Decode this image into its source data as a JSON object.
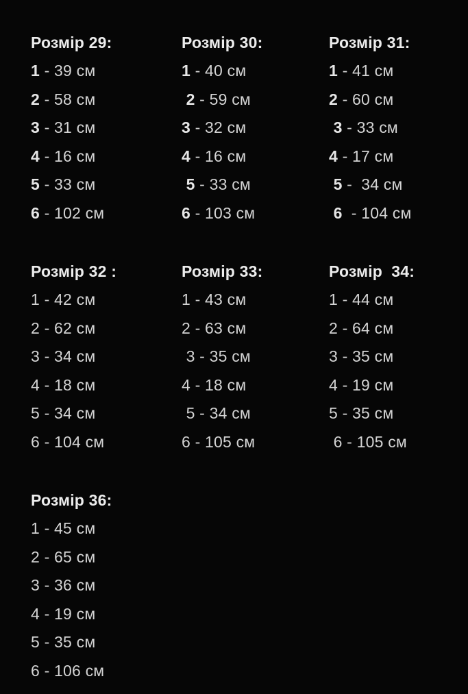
{
  "page": {
    "background": "#060606",
    "title_color": "#ececec",
    "text_color": "#d3d3d3",
    "unit": "см"
  },
  "groups": [
    {
      "title": "Розмір 29:",
      "bold_numbers": true,
      "items": [
        {
          "n": "1",
          "r": " - 39 см"
        },
        {
          "n": "2",
          "r": " - 58 см"
        },
        {
          "n": "3",
          "r": " - 31 см"
        },
        {
          "n": "4",
          "r": " - 16 см"
        },
        {
          "n": "5",
          "r": " - 33 см"
        },
        {
          "n": "6",
          "r": " - 102 см"
        }
      ]
    },
    {
      "title": "Розмір 30:",
      "bold_numbers": true,
      "items": [
        {
          "n": "1",
          "r": " - 40 см"
        },
        {
          "n": " 2",
          "r": " - 59 см"
        },
        {
          "n": "3",
          "r": " - 32 см"
        },
        {
          "n": "4",
          "r": " - 16 см"
        },
        {
          "n": " 5",
          "r": " - 33 см"
        },
        {
          "n": "6",
          "r": " - 103 см"
        }
      ]
    },
    {
      "title": "Розмір 31:",
      "bold_numbers": true,
      "items": [
        {
          "n": "1",
          "r": " - 41 см"
        },
        {
          "n": "2",
          "r": " - 60 см"
        },
        {
          "n": " 3",
          "r": " - 33 см"
        },
        {
          "n": "4",
          "r": " - 17 см"
        },
        {
          "n": " 5",
          "r": " -  34 см"
        },
        {
          "n": " 6",
          "r": "  - 104 см"
        }
      ]
    },
    {
      "title": "Розмір 32 :",
      "bold_numbers": false,
      "items": [
        {
          "n": "1",
          "r": " - 42 см"
        },
        {
          "n": "2",
          "r": " - 62 см"
        },
        {
          "n": "3",
          "r": " - 34 см"
        },
        {
          "n": "4",
          "r": " - 18 см"
        },
        {
          "n": "5",
          "r": " - 34 см"
        },
        {
          "n": "6",
          "r": " - 104 см"
        }
      ]
    },
    {
      "title": "Розмір 33:",
      "bold_numbers": false,
      "items": [
        {
          "n": "1",
          "r": " - 43 см"
        },
        {
          "n": "2",
          "r": " - 63 см"
        },
        {
          "n": " 3",
          "r": " - 35 см"
        },
        {
          "n": "4",
          "r": " - 18 см"
        },
        {
          "n": " 5",
          "r": " - 34 см"
        },
        {
          "n": "6",
          "r": " - 105 см"
        }
      ]
    },
    {
      "title": "Розмір  34:",
      "bold_numbers": false,
      "items": [
        {
          "n": "1",
          "r": " - 44 см"
        },
        {
          "n": "2",
          "r": " - 64 см"
        },
        {
          "n": "3",
          "r": " - 35 см"
        },
        {
          "n": "4",
          "r": " - 19 см"
        },
        {
          "n": "5",
          "r": " - 35 см"
        },
        {
          "n": " 6",
          "r": " - 105 см"
        }
      ]
    },
    {
      "title": "Розмір 36:",
      "bold_numbers": false,
      "items": [
        {
          "n": "1",
          "r": " - 45 см"
        },
        {
          "n": "2",
          "r": " - 65 см"
        },
        {
          "n": "3",
          "r": " - 36 см"
        },
        {
          "n": "4",
          "r": " - 19 см"
        },
        {
          "n": "5",
          "r": " - 35 см"
        },
        {
          "n": "6",
          "r": " - 106 см"
        }
      ]
    }
  ]
}
